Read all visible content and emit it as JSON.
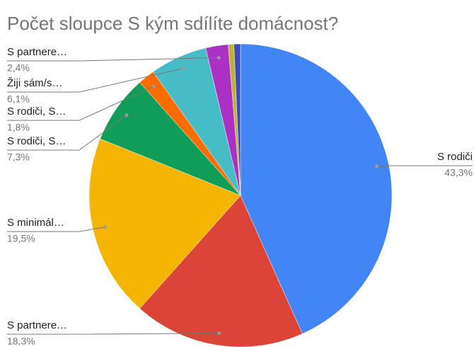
{
  "chart_data": {
    "type": "pie",
    "title": "Počet sloupce S kým sdílíte domácnost?",
    "categories": [
      "S rodiči",
      "S partnere…",
      "S minimál…",
      "S rodiči, S…",
      "S rodiči, S…",
      "Žiji sám/s…",
      "S partnere…",
      null,
      null
    ],
    "values": [
      43.3,
      18.3,
      19.5,
      7.3,
      1.8,
      6.1,
      2.4,
      0.6,
      0.7
    ],
    "value_labels": [
      "43,3%",
      "18,3%",
      "19,5%",
      "7,3%",
      "1,8%",
      "6,1%",
      "2,4%",
      null,
      null
    ],
    "colors": [
      "#4285f4",
      "#db4437",
      "#f4b400",
      "#0f9d58",
      "#ff6d00",
      "#46bdc6",
      "#ab30c4",
      "#c0b12e",
      "#3b4cb8"
    ]
  }
}
